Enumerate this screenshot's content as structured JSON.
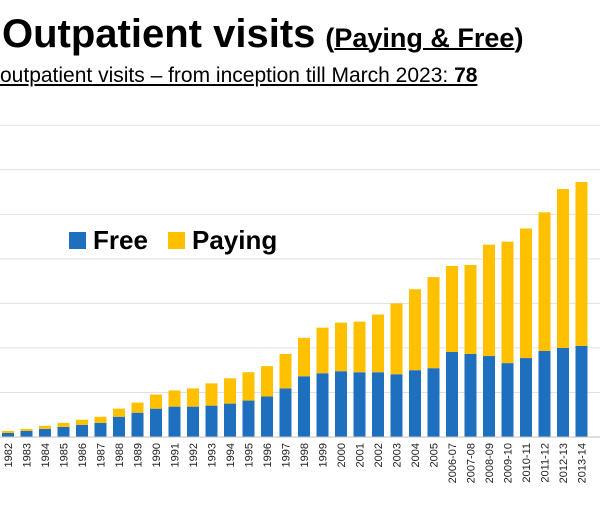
{
  "header": {
    "title": "Outpatient visits",
    "title_paren_open": "(",
    "title_paren_text": "Paying & Free",
    "title_paren_close": ")",
    "subtitle_text": "outpatient visits – from inception till March 2023: ",
    "subtitle_bold": "78"
  },
  "colors": {
    "free": "#1f6fbf",
    "paying": "#ffc000",
    "grid": "#e0e0e0"
  },
  "chart_data": {
    "type": "bar",
    "stacked": true,
    "categories": [
      "1982",
      "1983",
      "1984",
      "1985",
      "1986",
      "1987",
      "1988",
      "1989",
      "1990",
      "1991",
      "1992",
      "1993",
      "1994",
      "1995",
      "1996",
      "1997",
      "1998",
      "1999",
      "2000",
      "2001",
      "2002",
      "2003",
      "2004",
      "2005",
      "2006-07",
      "2007-08",
      "2008-09",
      "2009-10",
      "2010-11",
      "2011-12",
      "2012-13",
      "2013-14"
    ],
    "series": [
      {
        "name": "Free",
        "values": [
          4,
          6,
          8,
          10,
          12,
          14,
          20,
          24,
          28,
          30,
          30,
          31,
          33,
          36,
          40,
          48,
          60,
          63,
          65,
          64,
          64,
          62,
          66,
          68,
          84,
          82,
          80,
          73,
          78,
          85,
          88,
          90
        ]
      },
      {
        "name": "Paying",
        "values": [
          2,
          2,
          3,
          4,
          5,
          6,
          8,
          10,
          14,
          16,
          18,
          22,
          25,
          28,
          30,
          34,
          38,
          45,
          48,
          50,
          57,
          70,
          80,
          90,
          85,
          88,
          110,
          120,
          128,
          137,
          157,
          162
        ]
      }
    ],
    "legend": {
      "position": "top-left",
      "items": [
        "Free",
        "Paying"
      ]
    },
    "grid": true,
    "ylim": [
      0,
      330
    ]
  }
}
